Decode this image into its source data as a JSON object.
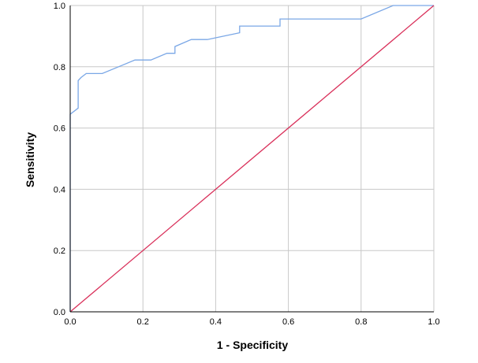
{
  "chart_data": {
    "type": "line",
    "title": "",
    "xlabel": "1 - Specificity",
    "ylabel": "Sensitivity",
    "xlim": [
      0.0,
      1.0
    ],
    "ylim": [
      0.0,
      1.0
    ],
    "grid": true,
    "x_ticks": [
      "0.0",
      "0.2",
      "0.4",
      "0.6",
      "0.8",
      "1.0"
    ],
    "y_ticks": [
      "0.0",
      "0.2",
      "0.4",
      "0.6",
      "0.8",
      "1.0"
    ],
    "series": [
      {
        "color": "#7aa7e6",
        "points": [
          [
            0.0,
            0.0
          ],
          [
            0.0,
            0.645
          ],
          [
            0.022,
            0.665
          ],
          [
            0.022,
            0.755
          ],
          [
            0.03,
            0.765
          ],
          [
            0.044,
            0.778
          ],
          [
            0.088,
            0.778
          ],
          [
            0.133,
            0.8
          ],
          [
            0.178,
            0.822
          ],
          [
            0.222,
            0.822
          ],
          [
            0.266,
            0.844
          ],
          [
            0.288,
            0.844
          ],
          [
            0.288,
            0.866
          ],
          [
            0.333,
            0.889
          ],
          [
            0.377,
            0.889
          ],
          [
            0.466,
            0.911
          ],
          [
            0.466,
            0.933
          ],
          [
            0.577,
            0.933
          ],
          [
            0.577,
            0.956
          ],
          [
            0.8,
            0.956
          ],
          [
            0.888,
            1.0
          ],
          [
            1.0,
            1.0
          ]
        ]
      },
      {
        "color": "#d9305a",
        "points": [
          [
            0.0,
            0.0
          ],
          [
            1.0,
            1.0
          ]
        ]
      }
    ],
    "colors": {
      "frame": "#000000",
      "grid": "#c8c8c8",
      "roc_curve": "#7aa7e6",
      "reference_line": "#d9305a"
    }
  }
}
